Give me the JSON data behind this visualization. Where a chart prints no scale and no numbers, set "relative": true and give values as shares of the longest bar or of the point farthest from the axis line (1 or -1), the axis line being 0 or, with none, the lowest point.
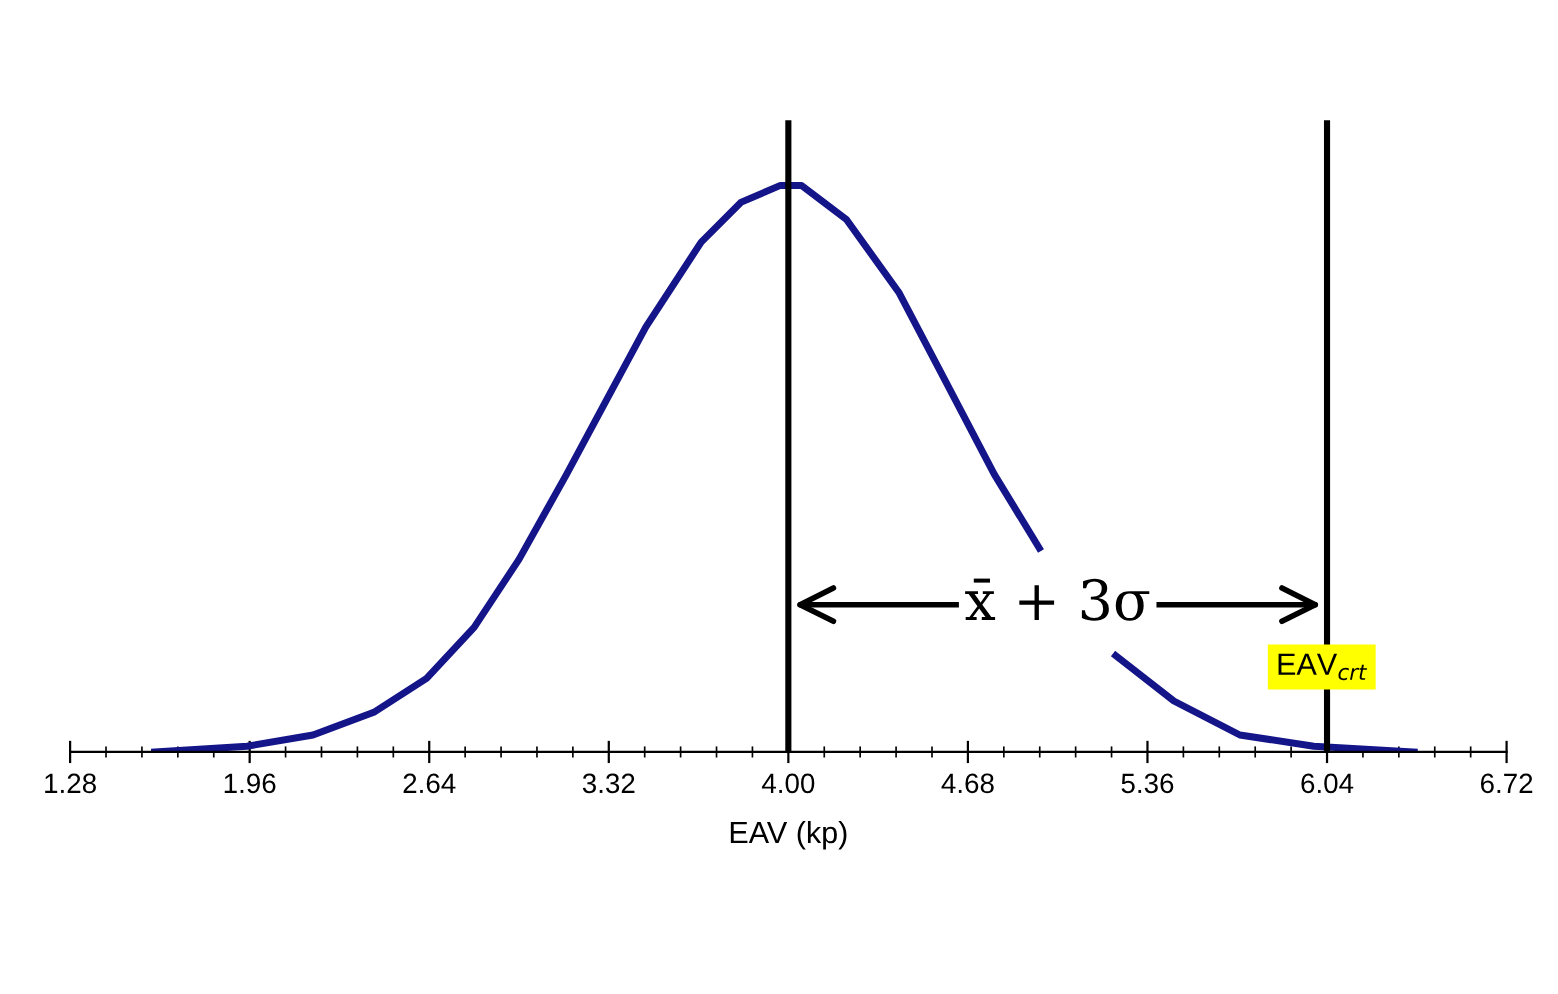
{
  "chart_data": {
    "type": "line",
    "relative": true,
    "xlabel": "EAV (kp)",
    "xlim": [
      1.28,
      6.72
    ],
    "xticks": [
      {
        "value": 1.28,
        "label": "1.28"
      },
      {
        "value": 1.96,
        "label": "1.96"
      },
      {
        "value": 2.64,
        "label": "2.64"
      },
      {
        "value": 3.32,
        "label": "3.32"
      },
      {
        "value": 4.0,
        "label": "4.00"
      },
      {
        "value": 4.68,
        "label": "4.68"
      },
      {
        "value": 5.36,
        "label": "5.36"
      },
      {
        "value": 6.04,
        "label": "6.04"
      },
      {
        "value": 6.72,
        "label": "6.72"
      }
    ],
    "series": [
      {
        "color": "#15158a",
        "x": [
          1.6,
          1.95,
          2.2,
          2.43,
          2.63,
          2.81,
          2.98,
          3.16,
          3.31,
          3.46,
          3.67,
          3.82,
          3.97,
          4.05,
          4.22,
          4.42,
          4.6,
          4.78,
          4.95,
          5.1,
          5.24,
          5.46,
          5.71,
          5.99,
          6.37
        ],
        "values": [
          0,
          0.01,
          0.03,
          0.07,
          0.13,
          0.22,
          0.34,
          0.49,
          0.62,
          0.75,
          0.9,
          0.97,
          1.0,
          1.0,
          0.94,
          0.81,
          0.65,
          0.49,
          0.36,
          null,
          0.17,
          0.09,
          0.03,
          0.01,
          0
        ]
      }
    ],
    "ref_lines": [
      {
        "axis": "x",
        "value": 4.0,
        "color": "#000000"
      },
      {
        "axis": "x",
        "value": 6.04,
        "color": "#000000"
      }
    ],
    "annotations": [
      "x̄ + 3σ",
      {
        "text": "EAV$_{crt}$",
        "x": 6.02,
        "y": 0.15
      }
    ],
    "grid": false,
    "marker": "none",
    "line_style": "solid"
  }
}
